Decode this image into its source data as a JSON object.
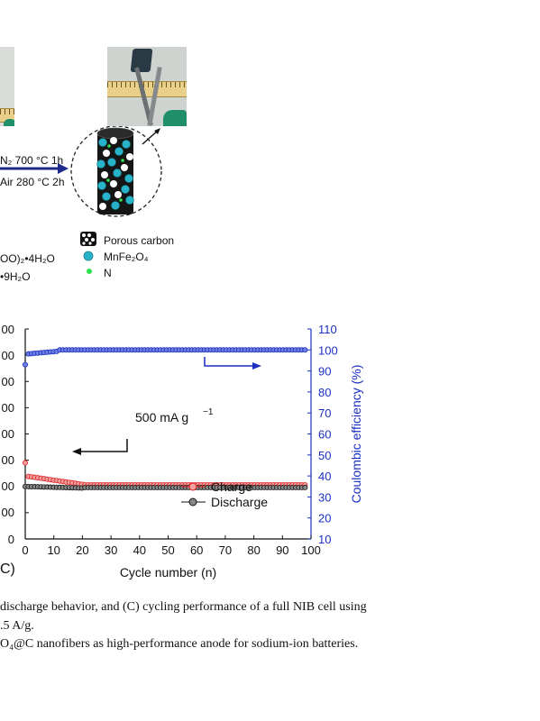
{
  "schematic": {
    "arrow_top": "N₂ 700 °C 1h",
    "arrow_bottom": "Air 280 °C 2h",
    "precursor_1": "OO)₂•4H₂O",
    "precursor_2": "•9H₂O",
    "legend": [
      "Porous carbon",
      "MnFe₂O₄",
      "N"
    ]
  },
  "panel_label": "C)",
  "chart_data": {
    "type": "scatter",
    "xlabel": "Cycle number (n)",
    "ylabel_right": "Coulombic efficiency (%)",
    "x_ticks": [
      0,
      10,
      20,
      30,
      40,
      50,
      60,
      70,
      80,
      90,
      100
    ],
    "xlim": [
      0,
      100
    ],
    "y_left_ticks": [
      "000",
      "00",
      "00",
      "00",
      "00",
      "00",
      "00",
      "00",
      "00",
      "0"
    ],
    "y_right_ticks": [
      110,
      100,
      90,
      80,
      70,
      60,
      50,
      40,
      30,
      20,
      10
    ],
    "y_right_lim": [
      10,
      110
    ],
    "annotation": "500 mA g",
    "annotation_sup": "−1",
    "series": [
      {
        "name": "Charge",
        "color": "#e02020",
        "start": 145,
        "plateau": 98.5
      },
      {
        "name": "Discharge",
        "color": "#111111",
        "start": 100,
        "plateau": 97
      },
      {
        "name": "",
        "color": "#1a2fc2",
        "start": 93,
        "plateau": 100
      }
    ]
  },
  "caption": {
    "line1": "discharge behavior, and (C) cycling performance of a full NIB cell using",
    "line2": ".5 A/g.",
    "line3": "O₄@C nanofibers as high-performance anode for sodium-ion batteries."
  }
}
